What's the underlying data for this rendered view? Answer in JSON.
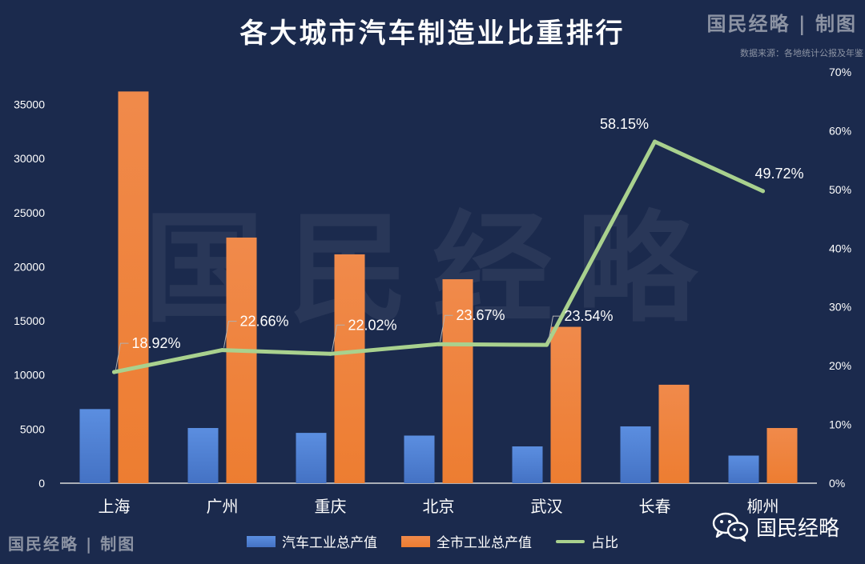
{
  "header": {
    "title": "各大城市汽车制造业比重排行",
    "brand": "国民经略 | 制图",
    "source": "数据来源：各地统计公报及年鉴"
  },
  "footer": {
    "brand": "国民经略 | 制图",
    "wechat_name": "国民经略"
  },
  "watermark": "国民经略",
  "colors": {
    "background": "#1b2a4d",
    "auto_bar": "#4472c4",
    "city_bar": "#ed7d31",
    "share_line": "#a9d18e"
  },
  "chart_data": {
    "type": "bar",
    "categories": [
      "上海",
      "广州",
      "重庆",
      "北京",
      "武汉",
      "长春",
      "柳州"
    ],
    "series": [
      {
        "name": "汽车工业总产值",
        "type": "bar",
        "axis": "left",
        "values": [
          6850,
          5100,
          4650,
          4400,
          3400,
          5250,
          2550
        ]
      },
      {
        "name": "全市工业总产值",
        "type": "bar",
        "axis": "left",
        "values": [
          36200,
          22700,
          21150,
          18850,
          14450,
          9100,
          5100
        ]
      },
      {
        "name": "占比",
        "type": "line",
        "axis": "right",
        "values": [
          18.92,
          22.66,
          22.02,
          23.67,
          23.54,
          58.15,
          49.72
        ]
      }
    ],
    "data_labels": [
      "18.92%",
      "22.66%",
      "22.02%",
      "23.67%",
      "23.54%",
      "58.15%",
      "49.72%"
    ],
    "y_left": {
      "min": 0,
      "max": 38000,
      "ticks": [
        0,
        5000,
        10000,
        15000,
        20000,
        25000,
        30000,
        35000
      ]
    },
    "y_right": {
      "min": 0,
      "max": 70,
      "ticks": [
        0,
        10,
        20,
        30,
        40,
        50,
        60,
        70
      ],
      "tick_labels": [
        "0%",
        "10%",
        "20%",
        "30%",
        "40%",
        "50%",
        "60%",
        "70%"
      ]
    },
    "legend": [
      "汽车工业总产值",
      "全市工业总产值",
      "占比"
    ],
    "legend_position": "bottom",
    "grid": false
  }
}
